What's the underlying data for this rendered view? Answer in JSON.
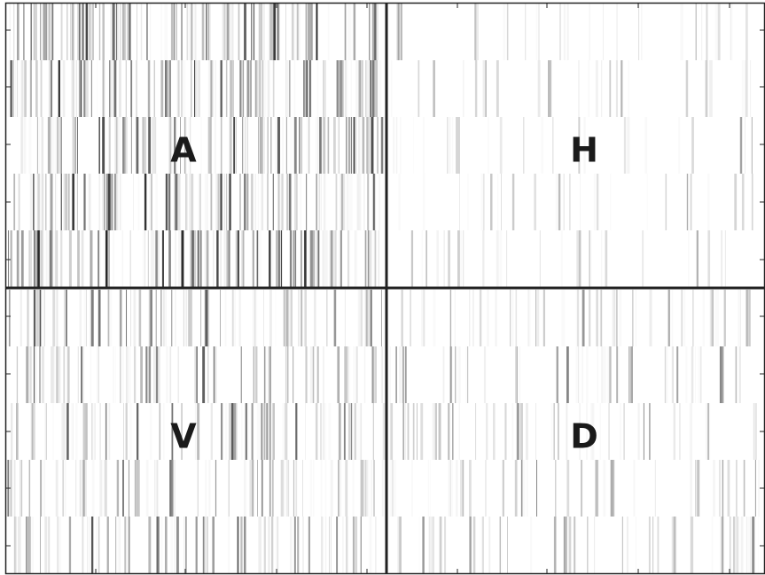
{
  "panels": [
    {
      "label": "A"
    },
    {
      "label": "H"
    },
    {
      "label": "V"
    },
    {
      "label": "D"
    }
  ]
}
